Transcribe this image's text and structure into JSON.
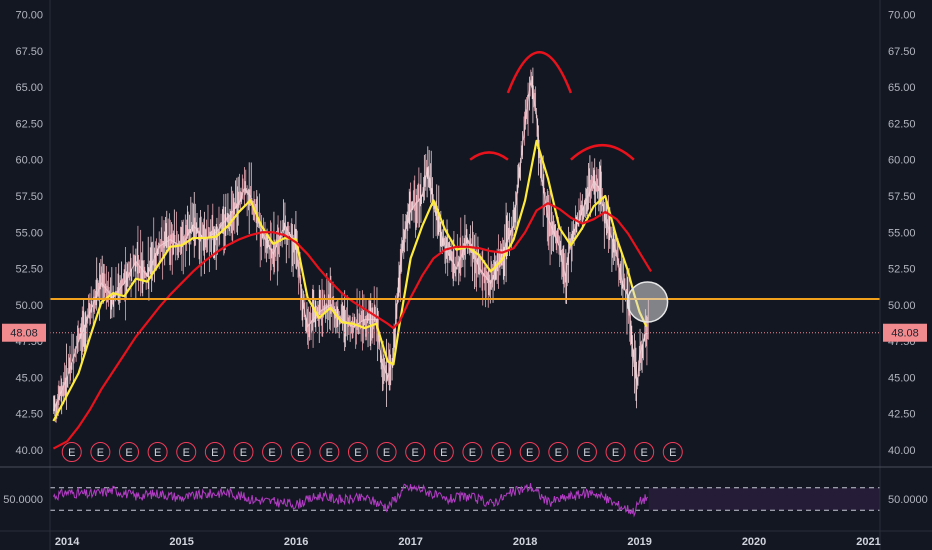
{
  "chart_data": {
    "type": "line",
    "title": "",
    "xlabel": "",
    "ylabel": "",
    "price_axis": {
      "ylim": [
        38.9,
        71.0
      ],
      "ticks": [
        40.0,
        42.5,
        45.0,
        47.5,
        50.0,
        52.5,
        55.0,
        57.5,
        60.0,
        62.5,
        65.0,
        67.5,
        70.0
      ],
      "tick_labels": [
        "40.00",
        "42.50",
        "45.00",
        "47.50",
        "50.00",
        "52.50",
        "55.00",
        "57.50",
        "60.00",
        "62.50",
        "65.00",
        "67.50",
        "70.00"
      ]
    },
    "time_axis": {
      "xlim": [
        2013.85,
        2021.1
      ],
      "ticks": [
        2014,
        2015,
        2016,
        2017,
        2018,
        2019,
        2020,
        2021
      ],
      "tick_labels": [
        "2014",
        "2015",
        "2016",
        "2017",
        "2018",
        "2019",
        "2020",
        "2021"
      ]
    },
    "series": [
      {
        "role": "price",
        "color": "#f2d7dd",
        "points": [
          [
            2013.88,
            42.7
          ],
          [
            2014.0,
            45.0
          ],
          [
            2014.1,
            47.5
          ],
          [
            2014.2,
            49.5
          ],
          [
            2014.3,
            51.5
          ],
          [
            2014.4,
            50.5
          ],
          [
            2014.5,
            51.5
          ],
          [
            2014.6,
            53.0
          ],
          [
            2014.7,
            52.0
          ],
          [
            2014.8,
            54.0
          ],
          [
            2014.9,
            54.5
          ],
          [
            2015.0,
            54.0
          ],
          [
            2015.1,
            55.5
          ],
          [
            2015.2,
            54.5
          ],
          [
            2015.3,
            55.0
          ],
          [
            2015.4,
            56.0
          ],
          [
            2015.5,
            57.0
          ],
          [
            2015.55,
            58.0
          ],
          [
            2015.6,
            57.5
          ],
          [
            2015.7,
            55.0
          ],
          [
            2015.8,
            53.5
          ],
          [
            2015.9,
            55.5
          ],
          [
            2016.0,
            54.0
          ],
          [
            2016.05,
            50.5
          ],
          [
            2016.1,
            48.5
          ],
          [
            2016.2,
            49.5
          ],
          [
            2016.3,
            50.0
          ],
          [
            2016.4,
            49.0
          ],
          [
            2016.5,
            48.5
          ],
          [
            2016.6,
            49.0
          ],
          [
            2016.7,
            49.0
          ],
          [
            2016.75,
            46.0
          ],
          [
            2016.8,
            45.0
          ],
          [
            2016.85,
            46.5
          ],
          [
            2016.9,
            52.0
          ],
          [
            2016.95,
            55.0
          ],
          [
            2017.0,
            56.5
          ],
          [
            2017.1,
            57.5
          ],
          [
            2017.15,
            59.5
          ],
          [
            2017.2,
            57.0
          ],
          [
            2017.3,
            54.0
          ],
          [
            2017.4,
            52.5
          ],
          [
            2017.5,
            54.5
          ],
          [
            2017.6,
            52.5
          ],
          [
            2017.7,
            51.5
          ],
          [
            2017.8,
            53.5
          ],
          [
            2017.9,
            55.5
          ],
          [
            2017.95,
            59.0
          ],
          [
            2018.0,
            62.5
          ],
          [
            2018.05,
            65.5
          ],
          [
            2018.1,
            63.0
          ],
          [
            2018.15,
            58.5
          ],
          [
            2018.2,
            56.0
          ],
          [
            2018.3,
            54.0
          ],
          [
            2018.35,
            52.0
          ],
          [
            2018.4,
            54.5
          ],
          [
            2018.5,
            56.5
          ],
          [
            2018.6,
            58.5
          ],
          [
            2018.65,
            58.0
          ],
          [
            2018.7,
            56.0
          ],
          [
            2018.8,
            53.5
          ],
          [
            2018.85,
            51.5
          ],
          [
            2018.9,
            50.5
          ],
          [
            2018.95,
            46.0
          ],
          [
            2018.98,
            44.5
          ],
          [
            2019.0,
            46.5
          ],
          [
            2019.05,
            48.0
          ],
          [
            2019.08,
            48.08
          ]
        ]
      },
      {
        "role": "ma-fast",
        "color": "#ffeb3b",
        "points": [
          [
            2013.88,
            42.0
          ],
          [
            2014.0,
            43.8
          ],
          [
            2014.1,
            45.3
          ],
          [
            2014.2,
            47.8
          ],
          [
            2014.3,
            50.2
          ],
          [
            2014.4,
            50.8
          ],
          [
            2014.5,
            50.6
          ],
          [
            2014.6,
            51.8
          ],
          [
            2014.7,
            51.6
          ],
          [
            2014.8,
            52.8
          ],
          [
            2014.9,
            54.0
          ],
          [
            2015.0,
            54.1
          ],
          [
            2015.1,
            54.6
          ],
          [
            2015.2,
            54.6
          ],
          [
            2015.3,
            54.7
          ],
          [
            2015.4,
            55.4
          ],
          [
            2015.5,
            56.4
          ],
          [
            2015.6,
            57.2
          ],
          [
            2015.7,
            55.4
          ],
          [
            2015.8,
            54.2
          ],
          [
            2015.9,
            54.6
          ],
          [
            2016.0,
            54.5
          ],
          [
            2016.05,
            52.5
          ],
          [
            2016.1,
            50.5
          ],
          [
            2016.2,
            49.1
          ],
          [
            2016.3,
            49.8
          ],
          [
            2016.4,
            48.8
          ],
          [
            2016.5,
            48.7
          ],
          [
            2016.6,
            48.4
          ],
          [
            2016.7,
            48.7
          ],
          [
            2016.8,
            46.1
          ],
          [
            2016.85,
            45.9
          ],
          [
            2016.9,
            48.5
          ],
          [
            2017.0,
            53.2
          ],
          [
            2017.1,
            55.4
          ],
          [
            2017.2,
            57.2
          ],
          [
            2017.3,
            55.2
          ],
          [
            2017.4,
            53.8
          ],
          [
            2017.5,
            54.0
          ],
          [
            2017.6,
            53.4
          ],
          [
            2017.7,
            52.3
          ],
          [
            2017.8,
            53.1
          ],
          [
            2017.9,
            54.5
          ],
          [
            2018.0,
            57.2
          ],
          [
            2018.1,
            61.3
          ],
          [
            2018.2,
            58.7
          ],
          [
            2018.3,
            55.3
          ],
          [
            2018.4,
            54.1
          ],
          [
            2018.5,
            55.3
          ],
          [
            2018.6,
            56.8
          ],
          [
            2018.7,
            57.5
          ],
          [
            2018.8,
            54.6
          ],
          [
            2018.9,
            52.3
          ],
          [
            2018.95,
            50.8
          ],
          [
            2019.0,
            49.5
          ],
          [
            2019.06,
            48.5
          ]
        ]
      },
      {
        "role": "ma-slow",
        "color": "#e8121c",
        "points": [
          [
            2013.88,
            40.1
          ],
          [
            2014.0,
            40.6
          ],
          [
            2014.1,
            41.6
          ],
          [
            2014.2,
            42.8
          ],
          [
            2014.3,
            44.2
          ],
          [
            2014.4,
            45.4
          ],
          [
            2014.5,
            46.6
          ],
          [
            2014.6,
            47.8
          ],
          [
            2014.7,
            48.8
          ],
          [
            2014.8,
            49.8
          ],
          [
            2014.9,
            50.7
          ],
          [
            2015.0,
            51.5
          ],
          [
            2015.1,
            52.3
          ],
          [
            2015.2,
            53.0
          ],
          [
            2015.3,
            53.6
          ],
          [
            2015.4,
            54.1
          ],
          [
            2015.5,
            54.5
          ],
          [
            2015.6,
            54.8
          ],
          [
            2015.7,
            55.0
          ],
          [
            2015.8,
            55.0
          ],
          [
            2015.9,
            54.8
          ],
          [
            2016.0,
            54.3
          ],
          [
            2016.1,
            53.5
          ],
          [
            2016.2,
            52.5
          ],
          [
            2016.3,
            51.6
          ],
          [
            2016.4,
            50.8
          ],
          [
            2016.5,
            50.2
          ],
          [
            2016.6,
            49.7
          ],
          [
            2016.7,
            49.2
          ],
          [
            2016.8,
            48.7
          ],
          [
            2016.85,
            48.4
          ],
          [
            2016.9,
            48.8
          ],
          [
            2017.0,
            50.5
          ],
          [
            2017.1,
            52.0
          ],
          [
            2017.2,
            53.2
          ],
          [
            2017.3,
            53.8
          ],
          [
            2017.4,
            54.0
          ],
          [
            2017.5,
            54.0
          ],
          [
            2017.6,
            53.9
          ],
          [
            2017.7,
            53.7
          ],
          [
            2017.8,
            53.6
          ],
          [
            2017.9,
            53.9
          ],
          [
            2018.0,
            55.0
          ],
          [
            2018.1,
            56.5
          ],
          [
            2018.2,
            57.0
          ],
          [
            2018.3,
            56.6
          ],
          [
            2018.4,
            56.0
          ],
          [
            2018.5,
            55.6
          ],
          [
            2018.6,
            55.9
          ],
          [
            2018.7,
            56.4
          ],
          [
            2018.8,
            55.9
          ],
          [
            2018.9,
            54.9
          ],
          [
            2019.0,
            53.6
          ],
          [
            2019.1,
            52.3
          ]
        ]
      }
    ],
    "support_level": {
      "value": 50.4,
      "color": "#f2a11c"
    },
    "last_price": {
      "value": 48.08,
      "label": "48.08",
      "color": "#f08a8f"
    },
    "annotations": {
      "arcs": [
        {
          "from": 2017.85,
          "to": 2017.52,
          "base": 60.0,
          "peak": 60.5
        },
        {
          "from": 2017.85,
          "to": 2018.4,
          "base": 64.6,
          "peak": 67.4
        },
        {
          "from": 2018.4,
          "to": 2018.95,
          "base": 60.0,
          "peak": 61.0
        }
      ],
      "circle": {
        "x": 2019.07,
        "y": 50.2
      }
    },
    "earnings_marker": {
      "label": "E",
      "dates": [
        2014.04,
        2014.29,
        2014.54,
        2014.79,
        2015.04,
        2015.29,
        2015.54,
        2015.79,
        2016.04,
        2016.29,
        2016.54,
        2016.79,
        2017.04,
        2017.29,
        2017.54,
        2017.79,
        2018.04,
        2018.29,
        2018.54,
        2018.79,
        2019.04,
        2019.29
      ],
      "color": "#f03c5a"
    },
    "oscillator": {
      "ylim": [
        0,
        100
      ],
      "tick": 50,
      "tick_label": "50.0000",
      "upper_band": 70,
      "lower_band": 30,
      "line_color": "#b23cc4",
      "points": [
        [
          2013.88,
          55
        ],
        [
          2014.0,
          62
        ],
        [
          2014.2,
          58
        ],
        [
          2014.4,
          66
        ],
        [
          2014.6,
          55
        ],
        [
          2014.8,
          60
        ],
        [
          2015.0,
          52
        ],
        [
          2015.2,
          58
        ],
        [
          2015.4,
          62
        ],
        [
          2015.6,
          50
        ],
        [
          2015.8,
          45
        ],
        [
          2016.0,
          40
        ],
        [
          2016.2,
          56
        ],
        [
          2016.4,
          48
        ],
        [
          2016.6,
          52
        ],
        [
          2016.8,
          36
        ],
        [
          2016.95,
          70
        ],
        [
          2017.1,
          68
        ],
        [
          2017.3,
          48
        ],
        [
          2017.5,
          55
        ],
        [
          2017.7,
          42
        ],
        [
          2017.9,
          62
        ],
        [
          2018.05,
          72
        ],
        [
          2018.2,
          44
        ],
        [
          2018.4,
          55
        ],
        [
          2018.6,
          62
        ],
        [
          2018.8,
          40
        ],
        [
          2018.95,
          28
        ],
        [
          2019.0,
          45
        ],
        [
          2019.08,
          55
        ]
      ]
    }
  }
}
